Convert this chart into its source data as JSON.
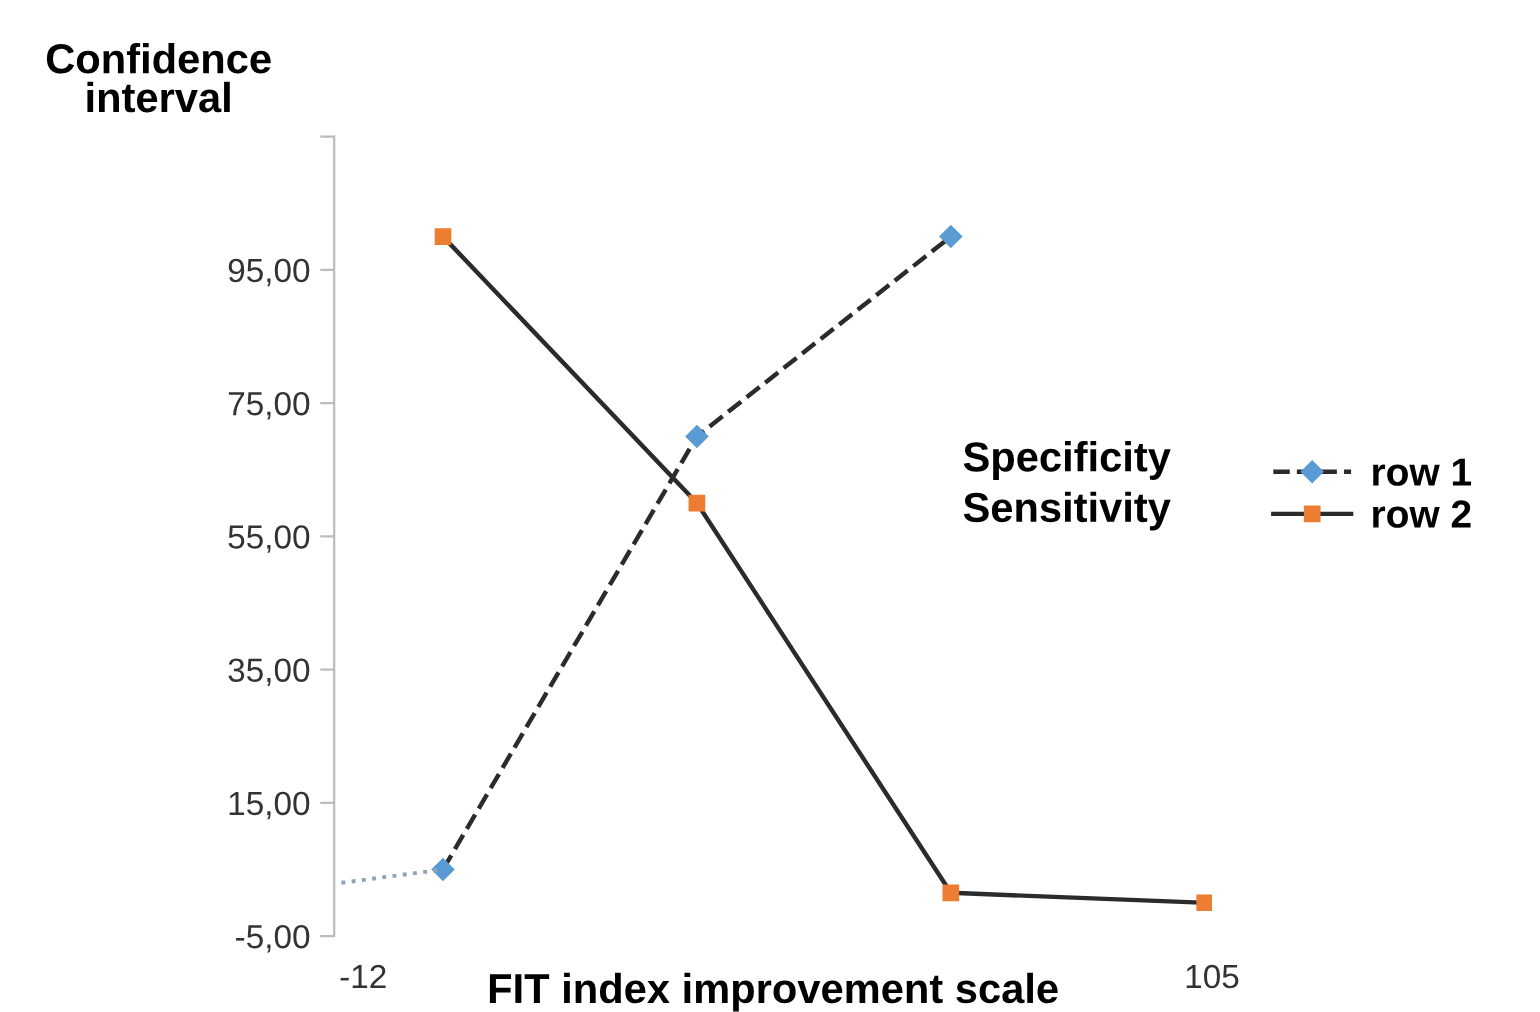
{
  "chart_data": {
    "type": "line",
    "ylabel": "Confidence interval",
    "xlabel": "FIT index improvement scale",
    "x": [
      -1,
      34,
      69,
      104
    ],
    "xlim": [
      -16,
      105
    ],
    "xticks": [
      -12,
      105
    ],
    "ylim": [
      -5,
      115
    ],
    "yticks": [
      {
        "value": -5,
        "label": "-5,00"
      },
      {
        "value": 15,
        "label": "15,00"
      },
      {
        "value": 35,
        "label": "35,00"
      },
      {
        "value": 55,
        "label": "55,00"
      },
      {
        "value": 75,
        "label": "75,00"
      },
      {
        "value": 95,
        "label": "95,00"
      },
      {
        "value": 115,
        "label": null
      }
    ],
    "series": [
      {
        "name": "row 1",
        "color": "#5b9bd5",
        "values": [
          5,
          70,
          100,
          null
        ],
        "line_style": "dashed",
        "marker": "diamond"
      },
      {
        "name": "row 2",
        "color": "#ed7d31",
        "values": [
          100,
          60,
          1.5,
          0
        ],
        "line_style": "solid",
        "marker": "square"
      },
      {
        "color": "#8fa3b8",
        "x": [
          -15,
          -1
        ],
        "values": [
          3,
          5
        ],
        "line_style": "dotted",
        "marker": "none"
      }
    ],
    "legend": "right",
    "annotations": [
      "Specificity",
      "Sensitivity"
    ],
    "grid": false
  }
}
